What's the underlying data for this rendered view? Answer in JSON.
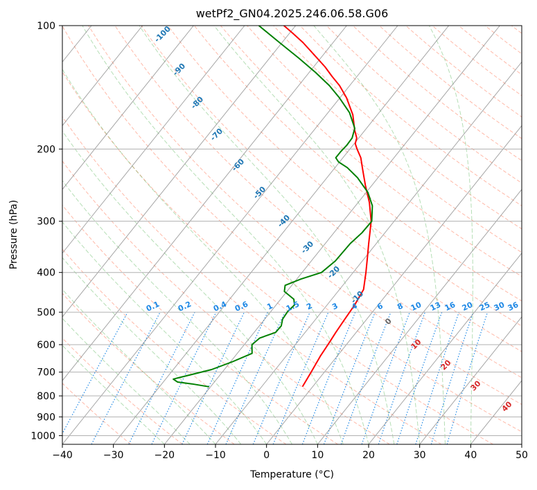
{
  "chart_data": {
    "type": "line",
    "subtype": "skew-t log-p diagram",
    "title": "wetPf2_GN04.2025.246.06.58.G06",
    "xlabel": "Temperature (°C)",
    "ylabel": "Pressure (hPa)",
    "xlim": [
      -40,
      50
    ],
    "ylim": [
      1050,
      100
    ],
    "yscale": "log",
    "grid": true,
    "x_ticks": [
      "−40",
      "−30",
      "−20",
      "−10",
      "0",
      "10",
      "20",
      "30",
      "40",
      "50"
    ],
    "y_ticks": [
      "1000",
      "900",
      "800",
      "700",
      "600",
      "500",
      "400",
      "300",
      "200",
      "100"
    ],
    "series": [
      {
        "color": "#ff0000",
        "points": [
          {
            "p": 760,
            "t": -2.0
          },
          {
            "p": 700,
            "t": -2.6
          },
          {
            "p": 640,
            "t": -3.3
          },
          {
            "p": 590,
            "t": -3.7
          },
          {
            "p": 560,
            "t": -4.0
          },
          {
            "p": 520,
            "t": -4.3
          },
          {
            "p": 480,
            "t": -4.6
          },
          {
            "p": 440,
            "t": -5.3
          },
          {
            "p": 400,
            "t": -7.5
          },
          {
            "p": 370,
            "t": -9.4
          },
          {
            "p": 340,
            "t": -11.5
          },
          {
            "p": 300,
            "t": -14.5
          },
          {
            "p": 270,
            "t": -17.8
          },
          {
            "p": 245,
            "t": -21.3
          },
          {
            "p": 225,
            "t": -24.2
          },
          {
            "p": 210,
            "t": -26.5
          },
          {
            "p": 200,
            "t": -28.6
          },
          {
            "p": 194,
            "t": -29.8
          },
          {
            "p": 188,
            "t": -30.4
          },
          {
            "p": 180,
            "t": -32.0
          },
          {
            "p": 165,
            "t": -34.8
          },
          {
            "p": 150,
            "t": -38.7
          },
          {
            "p": 140,
            "t": -42.0
          },
          {
            "p": 133,
            "t": -44.9
          },
          {
            "p": 126,
            "t": -47.8
          },
          {
            "p": 118,
            "t": -51.7
          },
          {
            "p": 110,
            "t": -55.9
          },
          {
            "p": 104,
            "t": -59.6
          },
          {
            "p": 100,
            "t": -62.3
          }
        ]
      },
      {
        "color": "#008000",
        "points": [
          {
            "p": 760,
            "t": -20.3
          },
          {
            "p": 748,
            "t": -24.1
          },
          {
            "p": 740,
            "t": -27.2
          },
          {
            "p": 728,
            "t": -28.5
          },
          {
            "p": 722,
            "t": -27.6
          },
          {
            "p": 708,
            "t": -25.4
          },
          {
            "p": 690,
            "t": -22.5
          },
          {
            "p": 660,
            "t": -19.6
          },
          {
            "p": 630,
            "t": -17.1
          },
          {
            "p": 600,
            "t": -18.5
          },
          {
            "p": 578,
            "t": -18.0
          },
          {
            "p": 560,
            "t": -15.8
          },
          {
            "p": 540,
            "t": -15.7
          },
          {
            "p": 520,
            "t": -16.5
          },
          {
            "p": 498,
            "t": -16.7
          },
          {
            "p": 480,
            "t": -16.4
          },
          {
            "p": 465,
            "t": -17.4
          },
          {
            "p": 445,
            "t": -20.5
          },
          {
            "p": 430,
            "t": -21.3
          },
          {
            "p": 415,
            "t": -19.2
          },
          {
            "p": 400,
            "t": -16.2
          },
          {
            "p": 375,
            "t": -15.3
          },
          {
            "p": 340,
            "t": -15.1
          },
          {
            "p": 320,
            "t": -14.5
          },
          {
            "p": 300,
            "t": -14.4
          },
          {
            "p": 275,
            "t": -16.7
          },
          {
            "p": 255,
            "t": -19.7
          },
          {
            "p": 235,
            "t": -24.0
          },
          {
            "p": 222,
            "t": -27.6
          },
          {
            "p": 215,
            "t": -30.2
          },
          {
            "p": 210,
            "t": -31.4
          },
          {
            "p": 203,
            "t": -31.4
          },
          {
            "p": 196,
            "t": -31.2
          },
          {
            "p": 188,
            "t": -31.3
          },
          {
            "p": 178,
            "t": -32.3
          },
          {
            "p": 163,
            "t": -35.8
          },
          {
            "p": 150,
            "t": -40.1
          },
          {
            "p": 140,
            "t": -44.0
          },
          {
            "p": 130,
            "t": -48.8
          },
          {
            "p": 120,
            "t": -54.3
          },
          {
            "p": 110,
            "t": -60.5
          },
          {
            "p": 100,
            "t": -67.2
          }
        ]
      }
    ],
    "background_lines": {
      "isotherm_step": 10,
      "dry_adiabat_color": "#ff8060",
      "moist_adiabat_color": "#2ca02c",
      "mixing_ratio_color": "#1e88e5",
      "isotherm_color": "#808080"
    },
    "annotations": {
      "blue_temperature_labels": [
        "-100",
        "-90",
        "-80",
        "-70",
        "-60",
        "-50",
        "-40",
        "-30",
        "-20",
        "-10"
      ],
      "mixing_ratio_labels": [
        "0.1",
        "0.2",
        "0.4",
        "0.6",
        "1",
        "1.5",
        "2",
        "3",
        "4",
        "6",
        "8",
        "10",
        "13",
        "16",
        "20",
        "25",
        "30",
        "36"
      ],
      "gray_temperature_labels": [
        "0"
      ],
      "red_temperature_labels": [
        "10",
        "20",
        "30",
        "40"
      ]
    }
  }
}
